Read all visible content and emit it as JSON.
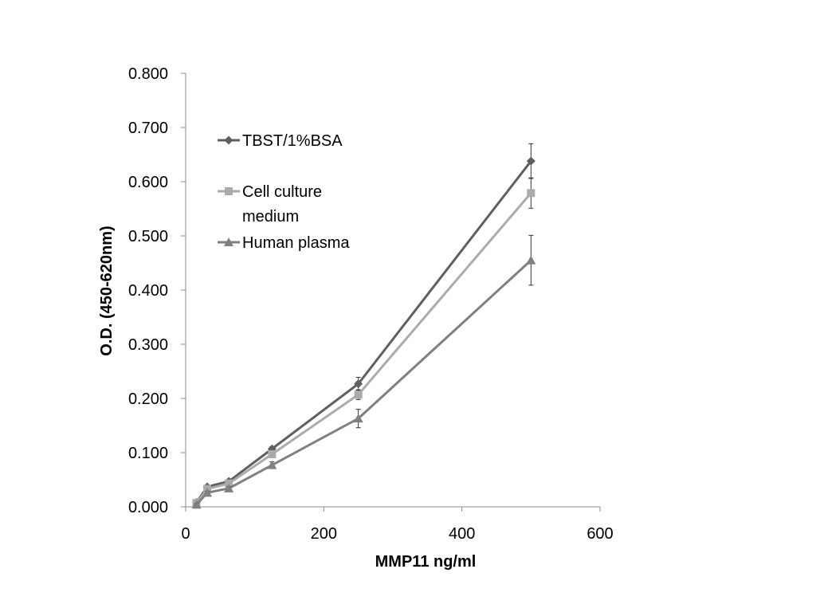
{
  "chart_data": {
    "type": "line",
    "title": "",
    "xlabel": "MMP11 ng/ml",
    "ylabel": "O.D. (450-620nm)",
    "xlim": [
      0,
      600
    ],
    "ylim": [
      0,
      0.8
    ],
    "xticks": [
      0,
      200,
      400,
      600
    ],
    "xtick_labels": [
      "0",
      "200",
      "400",
      "600"
    ],
    "yticks": [
      0,
      0.1,
      0.2,
      0.3,
      0.4,
      0.5,
      0.6,
      0.7,
      0.8
    ],
    "ytick_labels": [
      "0.000",
      "0.100",
      "0.200",
      "0.300",
      "0.400",
      "0.500",
      "0.600",
      "0.700",
      "0.800"
    ],
    "grid": false,
    "legend_position": "top-left",
    "x": [
      15.6,
      31.25,
      62.5,
      125,
      250,
      500
    ],
    "series": [
      {
        "name": "TBST/1%BSA",
        "marker": "diamond",
        "color": "#5f5f5f",
        "values": [
          0.008,
          0.037,
          0.047,
          0.107,
          0.227,
          0.638
        ],
        "errors": [
          0.002,
          0.003,
          0.003,
          0.004,
          0.012,
          0.032
        ]
      },
      {
        "name": "Cell culture medium",
        "name_lines": [
          "Cell culture",
          "medium"
        ],
        "marker": "square",
        "color": "#ababab",
        "values": [
          0.007,
          0.033,
          0.043,
          0.097,
          0.207,
          0.579
        ],
        "errors": [
          0.002,
          0.003,
          0.003,
          0.004,
          0.009,
          0.028
        ]
      },
      {
        "name": "Human plasma",
        "marker": "triangle",
        "color": "#808080",
        "values": [
          0.004,
          0.026,
          0.034,
          0.077,
          0.163,
          0.455
        ],
        "errors": [
          0.002,
          0.003,
          0.003,
          0.006,
          0.017,
          0.046
        ]
      }
    ]
  }
}
